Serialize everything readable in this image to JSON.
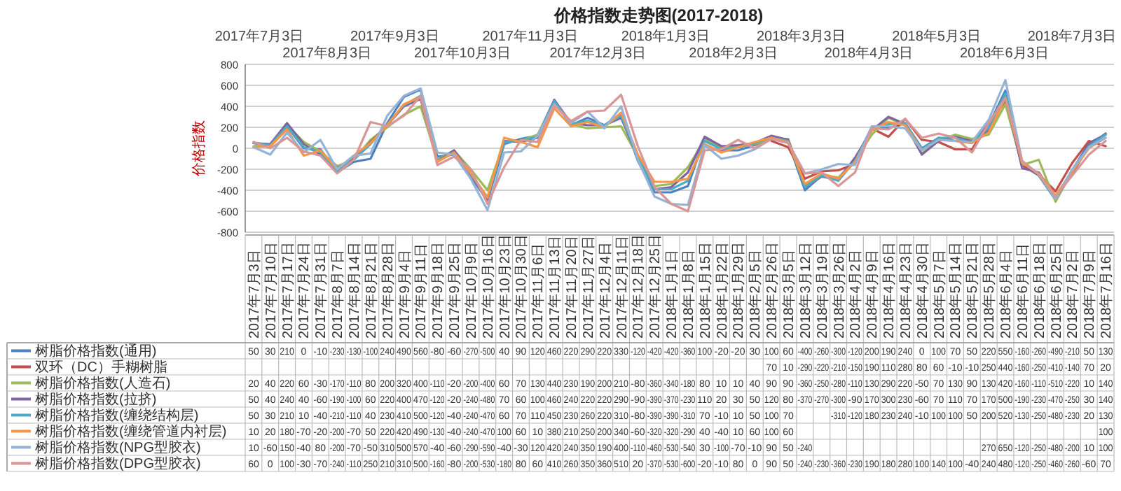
{
  "chart_data": {
    "type": "line",
    "title": "价格指数走势图(2017-2018)",
    "ylabel": "价格指数",
    "categories": [
      "2017年7月3日",
      "2017年7月10日",
      "2017年7月17日",
      "2017年7月24日",
      "2017年7月31日",
      "2017年8月7日",
      "2017年8月14日",
      "2017年8月21日",
      "2017年8月28日",
      "2017年9月4日",
      "2017年9月11日",
      "2017年9月18日",
      "2017年9月25日",
      "2017年10月9日",
      "2017年10月16日",
      "2017年10月23日",
      "2017年10月30日",
      "2017年11月6日",
      "2017年11月13日",
      "2017年11月20日",
      "2017年11月27日",
      "2017年12月4日",
      "2017年12月11日",
      "2017年12月18日",
      "2017年12月25日",
      "2018年1月1日",
      "2018年1月8日",
      "2018年1月15日",
      "2018年1月22日",
      "2018年1月29日",
      "2018年2月5日",
      "2018年2月26日",
      "2018年3月5日",
      "2018年3月12日",
      "2018年3月19日",
      "2018年3月26日",
      "2018年4月2日",
      "2018年4月9日",
      "2018年4月16日",
      "2018年4月23日",
      "2018年4月30日",
      "2018年5月7日",
      "2018年5月14日",
      "2018年5月21日",
      "2018年5月28日",
      "2018年6月4日",
      "2018年6月11日",
      "2018年6月18日",
      "2018年6月25日",
      "2018年7月2日",
      "2018年7月9日",
      "2018年7月16日"
    ],
    "ylim": [
      -800,
      800
    ],
    "yticks": [
      -800,
      -600,
      -400,
      -200,
      0,
      200,
      400,
      600,
      800
    ],
    "grid": "y",
    "legend": "bottom left",
    "data_labels": true,
    "marker": "none",
    "line_style": "solid",
    "annotations": [
      "2017年7月3日",
      "2017年8月3日",
      "2017年9月3日",
      "2017年10月3日",
      "2017年11月3日",
      "2017年12月3日",
      "2018年1月3日",
      "2018年2月3日",
      "2018年3月3日",
      "2018年4月3日",
      "2018年5月3日",
      "2018年6月3日",
      "2018年7月3日"
    ],
    "series": [
      {
        "name": "树脂价格指数(通用)",
        "color": "#4f81bd",
        "values": [
          50,
          30,
          210,
          0,
          -10,
          -230,
          -130,
          -100,
          240,
          490,
          560,
          -80,
          -60,
          -270,
          -500,
          40,
          90,
          120,
          460,
          220,
          290,
          220,
          330,
          -120,
          -420,
          -420,
          -360,
          100,
          -20,
          -20,
          30,
          100,
          60,
          -400,
          -260,
          -300,
          -120,
          200,
          190,
          240,
          0,
          100,
          70,
          50,
          220,
          550,
          -160,
          -260,
          -490,
          -210,
          50,
          130
        ]
      },
      {
        "name": "双环（DC）手糊树脂",
        "color": "#c0504d",
        "values": [
          null,
          null,
          null,
          null,
          null,
          null,
          null,
          null,
          null,
          null,
          null,
          null,
          null,
          null,
          null,
          null,
          null,
          null,
          null,
          null,
          null,
          null,
          null,
          null,
          null,
          null,
          null,
          null,
          null,
          null,
          null,
          70,
          10,
          -290,
          -220,
          -210,
          -150,
          190,
          110,
          280,
          80,
          60,
          -10,
          -10,
          250,
          440,
          -160,
          -250,
          -410,
          -140,
          70,
          20
        ]
      },
      {
        "name": "树脂价格指数(人造石)",
        "color": "#9bbb59",
        "values": [
          20,
          40,
          220,
          60,
          -30,
          -170,
          -110,
          80,
          200,
          320,
          400,
          -110,
          -20,
          -200,
          -400,
          60,
          70,
          130,
          440,
          230,
          190,
          200,
          210,
          -80,
          -360,
          -340,
          -180,
          80,
          10,
          10,
          40,
          90,
          90,
          -360,
          -250,
          -280,
          -110,
          130,
          290,
          220,
          -50,
          70,
          130,
          90,
          130,
          420,
          -160,
          -110,
          -510,
          -220,
          10,
          140
        ]
      },
      {
        "name": "树脂价格指数(拉挤)",
        "color": "#8064a2",
        "values": [
          50,
          40,
          240,
          40,
          -60,
          -190,
          -100,
          60,
          220,
          400,
          470,
          -120,
          -20,
          -240,
          -480,
          70,
          60,
          100,
          460,
          240,
          220,
          220,
          290,
          -90,
          -390,
          -370,
          -230,
          110,
          20,
          30,
          50,
          120,
          80,
          -370,
          -270,
          -300,
          -90,
          170,
          300,
          230,
          -60,
          70,
          110,
          70,
          170,
          500,
          -190,
          -230,
          -470,
          -250,
          30,
          140
        ]
      },
      {
        "name": "树脂价格指数(缠绕结构层)",
        "color": "#4bacc6",
        "values": [
          50,
          30,
          210,
          10,
          -40,
          -210,
          -110,
          40,
          230,
          410,
          500,
          -120,
          -40,
          -240,
          -470,
          60,
          70,
          110,
          450,
          230,
          260,
          220,
          310,
          -80,
          -390,
          -390,
          -310,
          70,
          -10,
          10,
          50,
          100,
          70,
          -370,
          -260,
          -310,
          -120,
          180,
          230,
          240,
          -10,
          100,
          100,
          50,
          200,
          520,
          -130,
          -250,
          -480,
          -230,
          20,
          130
        ],
        "value_labels": [
          "50",
          "30",
          "210",
          "10",
          "-40",
          "-210",
          "-110",
          "40",
          "230",
          "410",
          "500",
          "-120",
          "-40",
          "-240",
          "-470",
          "60",
          "70",
          "110",
          "450",
          "230",
          "260",
          "220",
          "310",
          "-80",
          "-390",
          "-390",
          "-310",
          "70",
          "-10",
          "10",
          "50",
          "100",
          "70",
          null,
          null,
          "-310",
          "-120",
          "180",
          "230",
          "240",
          "-10",
          "100",
          "100",
          "50",
          "200",
          "520",
          "-130",
          "-250",
          "-480",
          "-230",
          "20",
          "130"
        ]
      },
      {
        "name": "树脂价格指数(缠绕管道内衬层)",
        "color": "#f79646",
        "values": [
          10,
          20,
          180,
          -70,
          -20,
          -200,
          -70,
          50,
          220,
          420,
          490,
          -130,
          -40,
          -240,
          -470,
          100,
          60,
          10,
          380,
          210,
          250,
          200,
          340,
          -60,
          -320,
          -320,
          -290,
          40,
          -40,
          10,
          60,
          100,
          60,
          -340,
          -240,
          -290,
          -130,
          170,
          250,
          220,
          -20,
          80,
          70,
          50,
          150,
          480,
          -140,
          -240,
          -450,
          -220,
          0,
          100
        ],
        "value_labels": [
          "10",
          "20",
          "180",
          "-70",
          "-20",
          "-200",
          "-70",
          "50",
          "220",
          "420",
          "490",
          "-130",
          "-40",
          "-240",
          "-470",
          "100",
          "60",
          "10",
          "380",
          "210",
          "250",
          "200",
          "340",
          "-60",
          "-320",
          "-320",
          "-290",
          "40",
          "-40",
          "10",
          "60",
          "100",
          "60",
          null,
          null,
          null,
          null,
          null,
          null,
          null,
          null,
          null,
          null,
          null,
          null,
          null,
          null,
          null,
          null,
          null,
          null,
          "100"
        ]
      },
      {
        "name": "树脂价格指数(NPG型胶衣)",
        "color": "#95b3d7",
        "values": [
          10,
          -60,
          150,
          -40,
          80,
          -200,
          -70,
          -50,
          310,
          500,
          570,
          -40,
          -60,
          -290,
          -590,
          -40,
          -30,
          120,
          420,
          240,
          350,
          190,
          400,
          -110,
          -460,
          -530,
          -540,
          30,
          -100,
          -70,
          -10,
          90,
          50,
          -240,
          -200,
          -150,
          -160,
          210,
          210,
          190,
          -20,
          80,
          70,
          60,
          270,
          650,
          -120,
          -250,
          -480,
          -200,
          10,
          100
        ],
        "value_labels": [
          "10",
          "-60",
          "150",
          "-40",
          "80",
          "-200",
          "-70",
          "-50",
          "310",
          "500",
          "570",
          "-40",
          "-60",
          "-290",
          "-590",
          "-40",
          "-30",
          "120",
          "420",
          "240",
          "350",
          "190",
          "400",
          "-110",
          "-460",
          "-530",
          "-540",
          "30",
          "-100",
          "-70",
          "-10",
          "90",
          "50",
          "-240",
          null,
          null,
          null,
          null,
          null,
          null,
          null,
          null,
          null,
          null,
          "270",
          "650",
          "-120",
          "-250",
          "-480",
          "-200",
          "10",
          "100"
        ]
      },
      {
        "name": "树脂价格指数(DPG型胶衣)",
        "color": "#d99694",
        "values": [
          60,
          0,
          100,
          -30,
          -70,
          -240,
          -110,
          250,
          210,
          310,
          500,
          -160,
          -80,
          -200,
          -530,
          -180,
          80,
          60,
          410,
          260,
          350,
          360,
          510,
          20,
          -370,
          -530,
          -600,
          -20,
          -10,
          80,
          0,
          90,
          50,
          -240,
          -230,
          -360,
          -230,
          190,
          180,
          280,
          100,
          140,
          100,
          -40,
          240,
          480,
          -120,
          -250,
          -460,
          -260,
          -60,
          70
        ]
      }
    ]
  }
}
